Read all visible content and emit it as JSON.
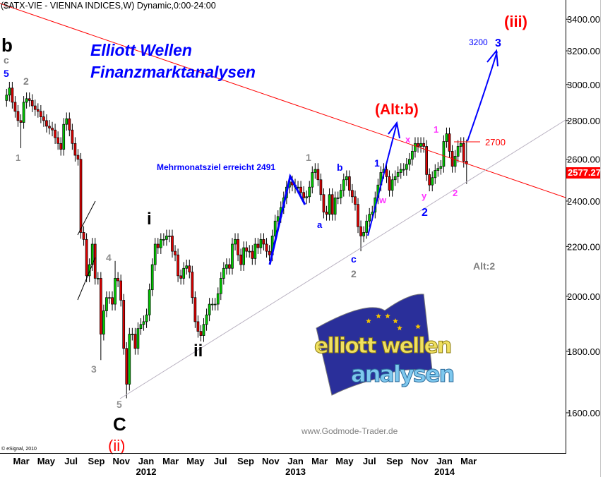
{
  "chart_data": {
    "type": "candlestick",
    "title": "($ATX-VIE - VIENNA INDICES,W) Dynamic,0:00-24:00",
    "y_scale": "log",
    "ylim": [
      1480,
      3500
    ],
    "x_range": [
      "2011-01-24",
      "2014-02-24"
    ],
    "y_ticks": [
      "3400.00",
      "3200.00",
      "3000.00",
      "2800.00",
      "2600.00",
      "2400.00",
      "2200.00",
      "2000.00",
      "1800.00",
      "1600.00"
    ],
    "y_tick_values": [
      3400,
      3200,
      3000,
      2800,
      2600,
      2400,
      2200,
      2000,
      1800,
      1600
    ],
    "x_ticks": [
      {
        "label": "Mar",
        "date": "2011-03-01"
      },
      {
        "label": "May",
        "date": "2011-05-01"
      },
      {
        "label": "Jul",
        "date": "2011-07-01"
      },
      {
        "label": "Sep",
        "date": "2011-09-01"
      },
      {
        "label": "Nov",
        "date": "2011-11-01"
      },
      {
        "label": "Jan",
        "date": "2012-01-01",
        "year": "2012"
      },
      {
        "label": "Mar",
        "date": "2012-03-01"
      },
      {
        "label": "May",
        "date": "2012-05-01"
      },
      {
        "label": "Jul",
        "date": "2012-07-01"
      },
      {
        "label": "Sep",
        "date": "2012-09-01"
      },
      {
        "label": "Nov",
        "date": "2012-11-01"
      },
      {
        "label": "Jan",
        "date": "2013-01-01",
        "year": "2013"
      },
      {
        "label": "Mar",
        "date": "2013-03-01"
      },
      {
        "label": "May",
        "date": "2013-05-01"
      },
      {
        "label": "Jul",
        "date": "2013-07-01"
      },
      {
        "label": "Sep",
        "date": "2013-09-01"
      },
      {
        "label": "Nov",
        "date": "2013-11-01"
      },
      {
        "label": "Jan",
        "date": "2014-01-01",
        "year": "2014"
      },
      {
        "label": "Mar",
        "date": "2014-03-01"
      }
    ],
    "last_price": "2577.27",
    "colors": {
      "up": "#00cc00",
      "down": "#dd0000",
      "last_price_bg": "#ff0000",
      "resistance": "#ff0000",
      "support": "#b8b0c0",
      "arrows": "#0000ff"
    },
    "weekly_closes": [
      2940,
      2980,
      2900,
      2850,
      2800,
      2790,
      2900,
      2920,
      2910,
      2880,
      2860,
      2850,
      2820,
      2800,
      2770,
      2760,
      2750,
      2710,
      2680,
      2650,
      2780,
      2810,
      2750,
      2680,
      2620,
      2600,
      2260,
      2230,
      2080,
      2125,
      2210,
      2070,
      2070,
      1860,
      1945,
      1995,
      1995,
      1970,
      2070,
      2060,
      1985,
      1810,
      1690,
      1860,
      1860,
      1810,
      1880,
      1895,
      1905,
      1930,
      2025,
      2125,
      2210,
      2195,
      2230,
      2230,
      2245,
      2245,
      2180,
      2165,
      2080,
      2070,
      2110,
      2120,
      2095,
      1995,
      1905,
      1870,
      1855,
      1895,
      1930,
      1970,
      1970,
      1970,
      2010,
      2070,
      2110,
      2125,
      2110,
      2210,
      2230,
      2165,
      2125,
      2195,
      2180,
      2180,
      2150,
      2210,
      2195,
      2230,
      2210,
      2180,
      2165,
      2245,
      2310,
      2330,
      2370,
      2415,
      2465,
      2490,
      2475,
      2465,
      2465,
      2440,
      2415,
      2420,
      2465,
      2535,
      2550,
      2500,
      2430,
      2350,
      2340,
      2430,
      2340,
      2415,
      2415,
      2450,
      2500,
      2515,
      2450,
      2420,
      2385,
      2285,
      2245,
      2260,
      2310,
      2340,
      2350,
      2415,
      2475,
      2535,
      2550,
      2515,
      2450,
      2500,
      2515,
      2535,
      2550,
      2550,
      2575,
      2600,
      2640,
      2680,
      2665,
      2680,
      2665,
      2525,
      2475,
      2510,
      2545,
      2555,
      2565,
      2690,
      2730,
      2640,
      2565,
      2615,
      2665,
      2680,
      2590,
      2577
    ],
    "notable_wicks": [
      {
        "week": 5,
        "low": 2656
      },
      {
        "week": 33,
        "low": 1770
      },
      {
        "week": 38,
        "high": 2140
      },
      {
        "week": 42,
        "low": 1645
      },
      {
        "week": 68,
        "low": 1835
      },
      {
        "week": 124,
        "low": 2180
      },
      {
        "week": 161,
        "low": 2480,
        "high": 2700
      }
    ],
    "annotations": [
      {
        "text": "b",
        "color": "#000000"
      },
      {
        "text": "c",
        "color": "#808080"
      },
      {
        "text": "5",
        "color": "#0000ff"
      },
      {
        "text": "2",
        "color": "#808080"
      },
      {
        "text": "1",
        "color": "#909090"
      },
      {
        "text": "3",
        "color": "#909090"
      },
      {
        "text": "4",
        "color": "#909090"
      },
      {
        "text": "5",
        "color": "#909090"
      },
      {
        "text": "C",
        "color": "#000000"
      },
      {
        "text": "(ii)",
        "color": "#ff0000"
      },
      {
        "text": "i",
        "color": "#000000"
      },
      {
        "text": "ii",
        "color": "#000000"
      },
      {
        "text": "1",
        "color": "#909090"
      },
      {
        "text": "b",
        "color": "#0000ff"
      },
      {
        "text": "a",
        "color": "#0000ff"
      },
      {
        "text": "c",
        "color": "#0000ff"
      },
      {
        "text": "2",
        "color": "#808080"
      },
      {
        "text": "1",
        "color": "#0000ff"
      },
      {
        "text": "w",
        "color": "#ff33ff"
      },
      {
        "text": "x",
        "color": "#ff33ff"
      },
      {
        "text": "1",
        "color": "#ff33ff"
      },
      {
        "text": "y",
        "color": "#ff33ff"
      },
      {
        "text": "2",
        "color": "#0000ff"
      },
      {
        "text": "2",
        "color": "#ff33ff"
      },
      {
        "text": "(Alt:b)",
        "color": "#ff0000"
      },
      {
        "text": "(iii)",
        "color": "#ff0000"
      },
      {
        "text": "3200",
        "color": "#0000ff"
      },
      {
        "text": "3",
        "color": "#0000ff"
      },
      {
        "text": "2700",
        "color": "#ff0000"
      },
      {
        "text": "Alt:2",
        "color": "#808080"
      },
      {
        "text": "Mehrmonatsziel erreicht 2491",
        "color": "#0000ff"
      }
    ]
  },
  "overlay": {
    "heading_line1": "Elliott Wellen",
    "heading_line2": "Finanzmarktanalysen",
    "watermark": "www.Godmode-Trader.de",
    "copyright": "© eSignal, 2010",
    "logo_text_top": "elliott wellen",
    "logo_text_bottom": "analysen"
  }
}
